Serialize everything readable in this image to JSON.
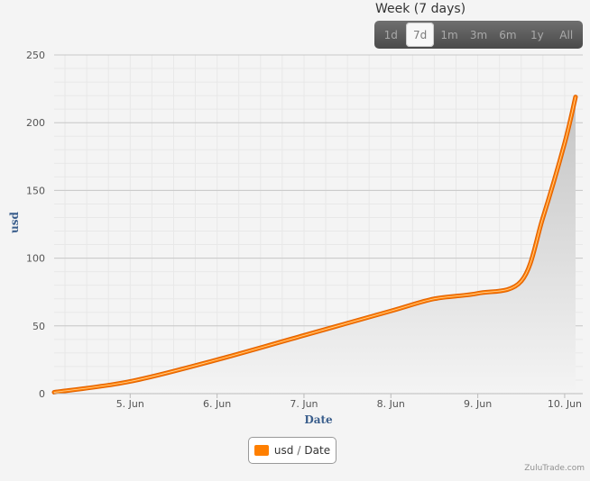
{
  "range_selector": {
    "title": "Week (7 days)",
    "buttons": [
      "1d",
      "7d",
      "1m",
      "3m",
      "6m",
      "1y",
      "All"
    ],
    "active": "7d"
  },
  "colors": {
    "line": "#ff7f00",
    "line_border": "#e06000",
    "grid": "#d8d8d8",
    "axis_title": "#3a5e8c"
  },
  "chart_data": {
    "type": "area",
    "xlabel": "Date",
    "ylabel": "usd",
    "ylim": [
      0,
      250
    ],
    "yticks": [
      0,
      50,
      100,
      150,
      200,
      250
    ],
    "xlim": [
      "2014-06-04T03:00",
      "2014-06-10T05:00"
    ],
    "xtick_labels": [
      "5. Jun",
      "6. Jun",
      "7. Jun",
      "8. Jun",
      "9. Jun",
      "10. Jun"
    ],
    "xticks": [
      "2014-06-05",
      "2014-06-06",
      "2014-06-07",
      "2014-06-08",
      "2014-06-09",
      "2014-06-10"
    ],
    "grid": true,
    "legend": "bottom-center",
    "series": [
      {
        "name": "usd",
        "x": [
          "2014-06-04T03:00",
          "2014-06-05T00:00",
          "2014-06-06T00:00",
          "2014-06-07T00:00",
          "2014-06-08T00:00",
          "2014-06-08T12:00",
          "2014-06-09T00:00",
          "2014-06-09T12:00",
          "2014-06-09T18:00",
          "2014-06-10T00:00",
          "2014-06-10T03:00"
        ],
        "values": [
          1,
          9,
          25,
          43,
          61,
          70,
          74,
          83,
          130,
          185,
          219
        ]
      }
    ]
  },
  "legend_item": {
    "series": "usd",
    "separator": "/",
    "axis": "Date"
  },
  "credit": "ZuluTrade.com"
}
